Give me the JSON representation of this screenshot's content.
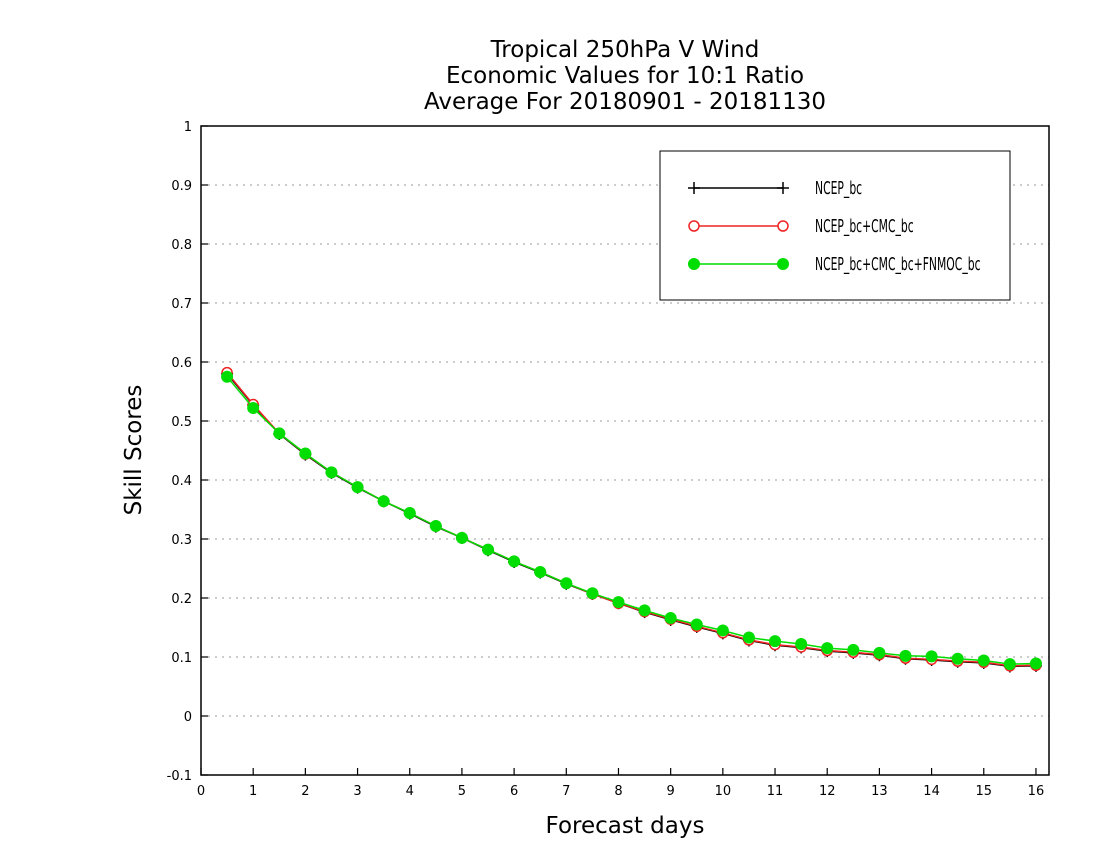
{
  "chart_data": {
    "type": "line",
    "title": [
      "Tropical 250hPa V Wind",
      "Economic Values for 10:1 Ratio",
      "Average For 20180901 - 20181130"
    ],
    "xlabel": "Forecast days",
    "ylabel": "Skill Scores",
    "xlim": [
      0,
      16.25
    ],
    "ylim": [
      -0.1,
      1
    ],
    "xticks": [
      "0",
      "1",
      "2",
      "3",
      "4",
      "5",
      "6",
      "7",
      "8",
      "9",
      "10",
      "11",
      "12",
      "13",
      "14",
      "15",
      "16"
    ],
    "yticks": [
      "-0.1",
      "0",
      "0.1",
      "0.2",
      "0.3",
      "0.4",
      "0.5",
      "0.6",
      "0.7",
      "0.8",
      "0.9",
      "1"
    ],
    "grid": true,
    "legend": "top-right",
    "x": [
      0.5,
      1,
      1.5,
      2,
      2.5,
      3,
      3.5,
      4,
      4.5,
      5,
      5.5,
      6,
      6.5,
      7,
      7.5,
      8,
      8.5,
      9,
      9.5,
      10,
      10.5,
      11,
      11.5,
      12,
      12.5,
      13,
      13.5,
      14,
      14.5,
      15,
      15.5,
      16
    ],
    "series": [
      {
        "name": "NCEP_bc",
        "color": "#000000",
        "marker": "plus",
        "values": [
          0.58,
          0.527,
          0.478,
          0.443,
          0.412,
          0.387,
          0.364,
          0.343,
          0.321,
          0.302,
          0.281,
          0.261,
          0.243,
          0.224,
          0.207,
          0.191,
          0.176,
          0.163,
          0.151,
          0.14,
          0.128,
          0.12,
          0.116,
          0.11,
          0.107,
          0.103,
          0.097,
          0.095,
          0.092,
          0.09,
          0.084,
          0.085
        ]
      },
      {
        "name": "NCEP_bc+CMC_bc",
        "color": "#ee2222",
        "marker": "open-circle",
        "values": [
          0.582,
          0.528,
          0.479,
          0.444,
          0.413,
          0.388,
          0.364,
          0.344,
          0.322,
          0.302,
          0.282,
          0.262,
          0.244,
          0.225,
          0.207,
          0.191,
          0.177,
          0.164,
          0.152,
          0.141,
          0.129,
          0.121,
          0.117,
          0.111,
          0.108,
          0.104,
          0.098,
          0.096,
          0.093,
          0.091,
          0.085,
          0.086
        ]
      },
      {
        "name": "NCEP_bc+CMC_bc+FNMOC_bc",
        "color": "#00dd00",
        "marker": "filled-circle",
        "values": [
          0.575,
          0.522,
          0.479,
          0.445,
          0.413,
          0.388,
          0.364,
          0.344,
          0.322,
          0.302,
          0.282,
          0.262,
          0.244,
          0.225,
          0.208,
          0.193,
          0.179,
          0.166,
          0.155,
          0.145,
          0.133,
          0.127,
          0.122,
          0.115,
          0.112,
          0.107,
          0.102,
          0.101,
          0.097,
          0.094,
          0.088,
          0.089
        ]
      }
    ]
  }
}
